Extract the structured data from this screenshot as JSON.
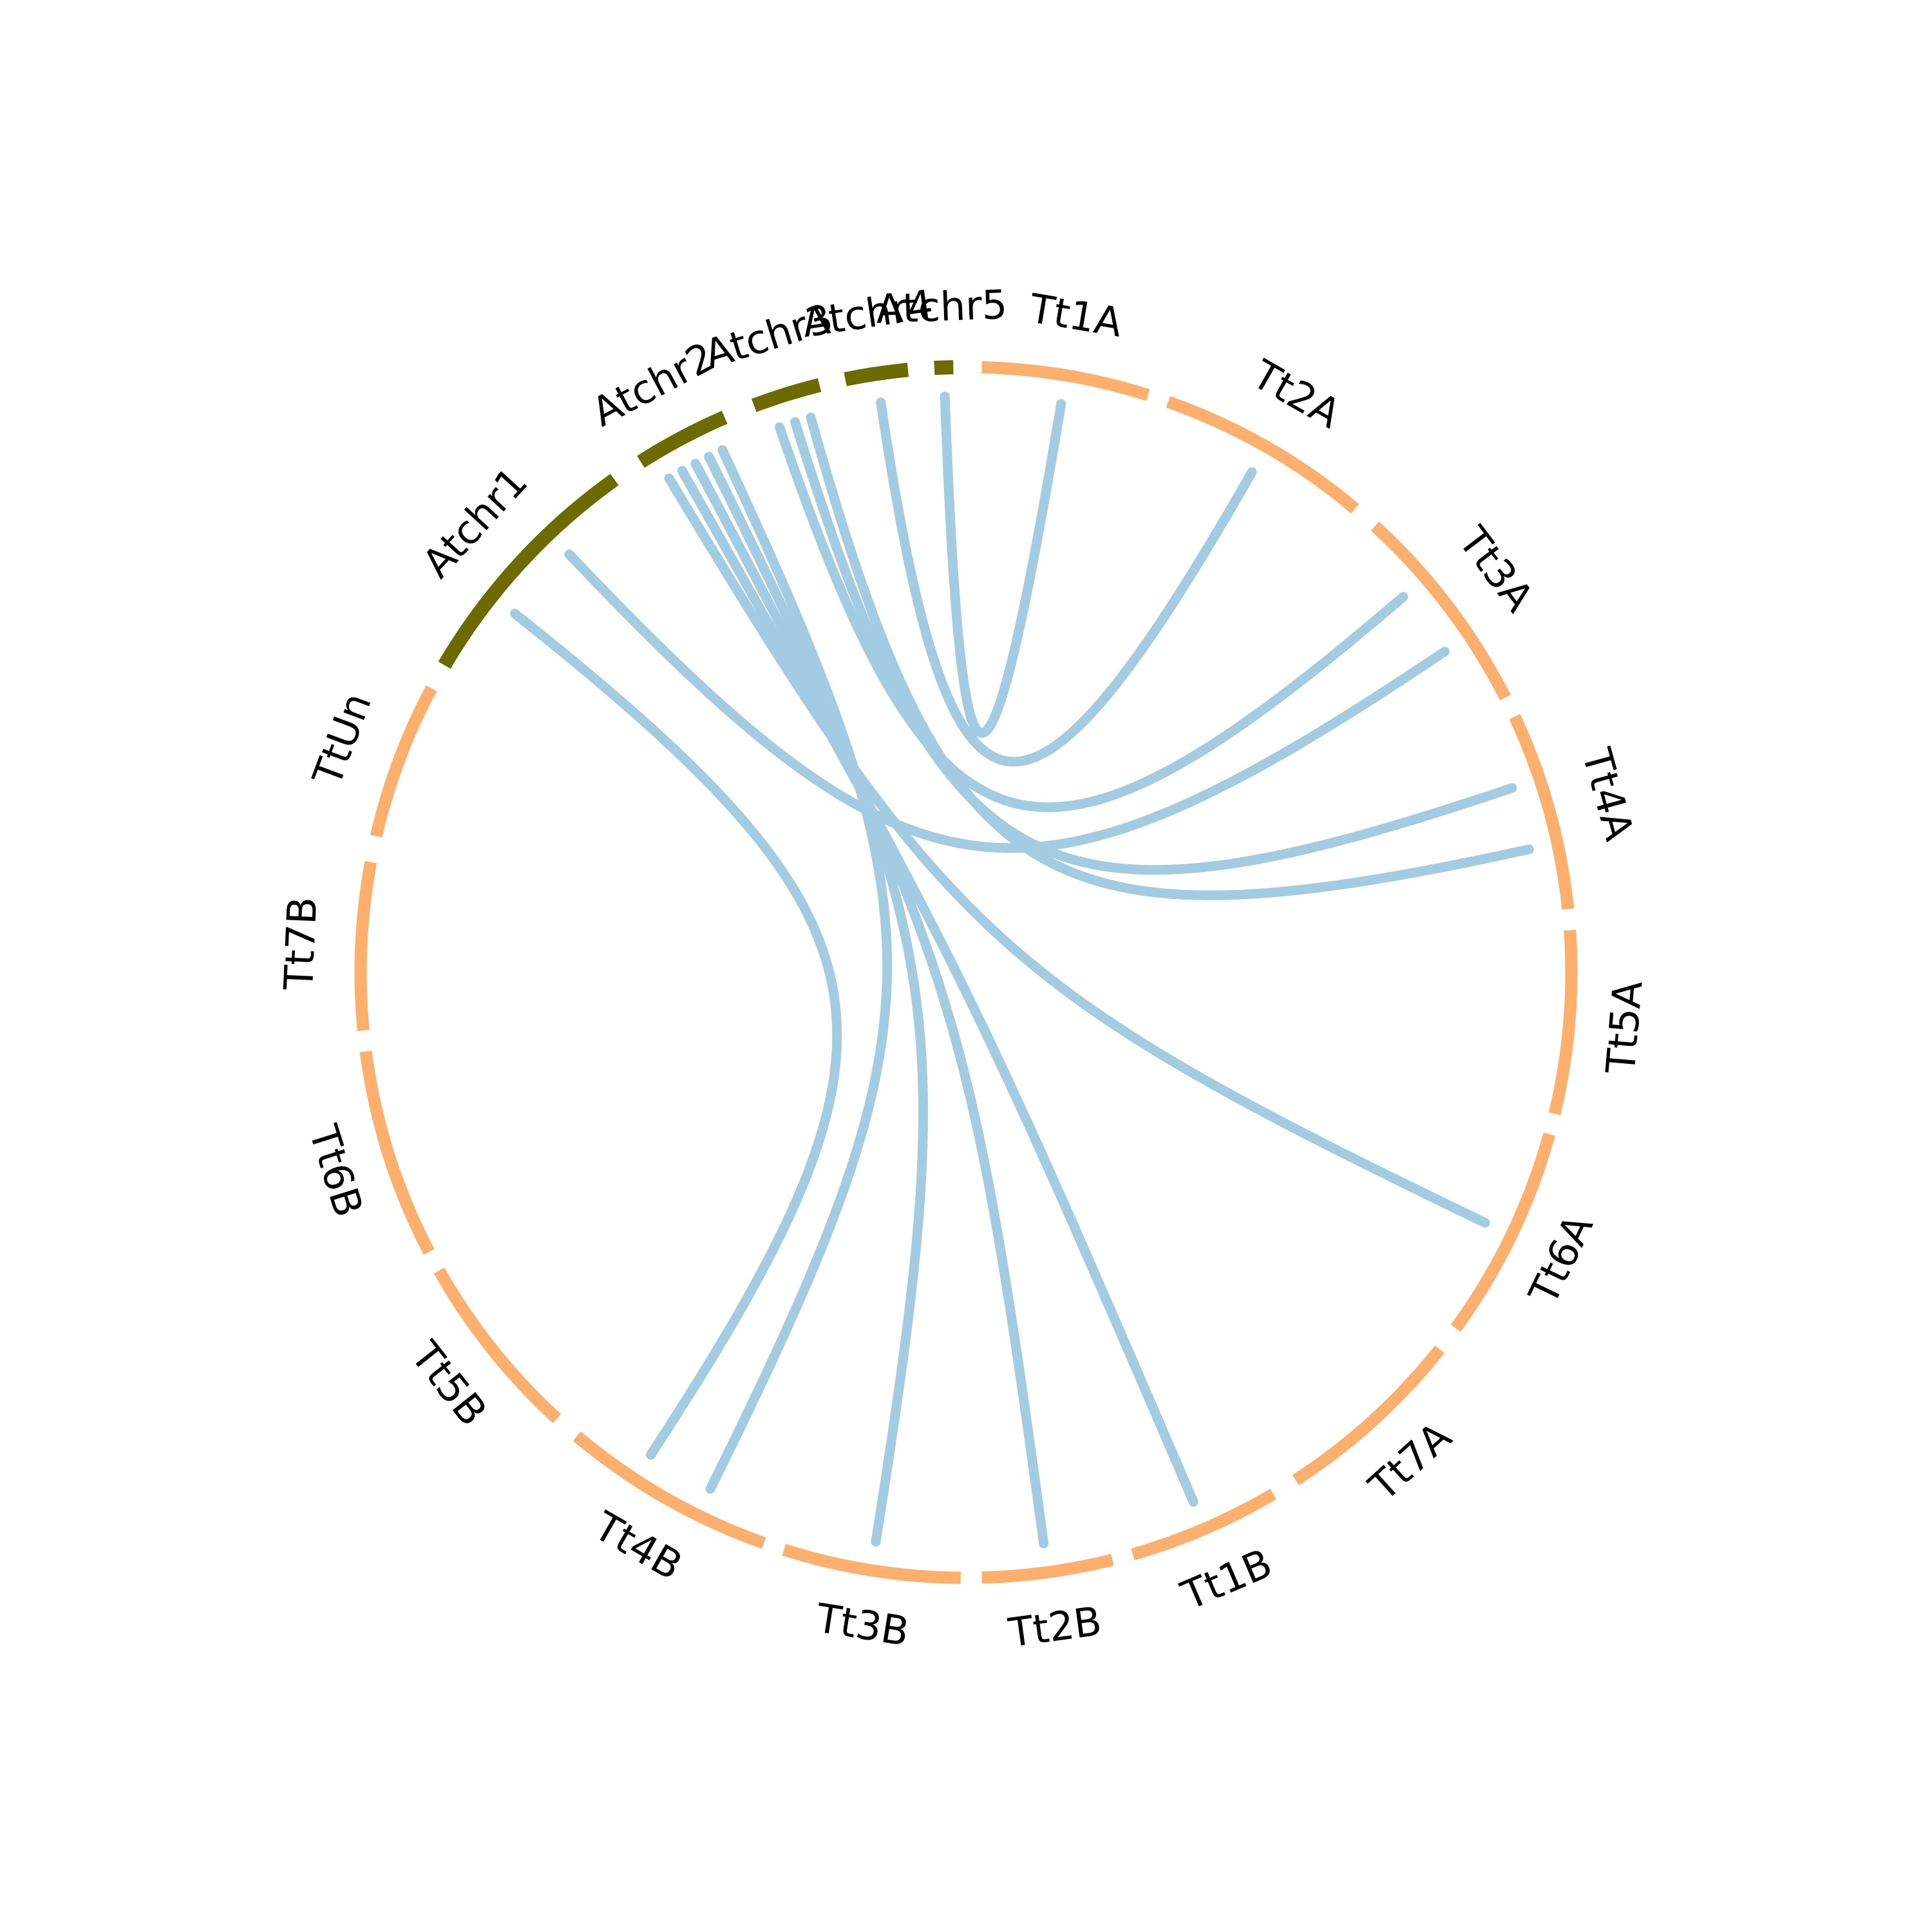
{
  "colors": {
    "arabidopsis": "#6b6b00",
    "triticum": "#fdb06e",
    "link": "#a3cbe1",
    "label": "#000000"
  },
  "segments": [
    {
      "name": "Atchr1",
      "start": 300.5,
      "end": 324.5,
      "group": "arabidopsis"
    },
    {
      "name": "Atchr2",
      "start": 327.5,
      "end": 336.5,
      "group": "arabidopsis"
    },
    {
      "name": "Atchr3",
      "start": 339.5,
      "end": 346.0,
      "group": "arabidopsis"
    },
    {
      "name": "Atchr4",
      "start": 348.5,
      "end": 354.5,
      "group": "arabidopsis"
    },
    {
      "name": "Atchr5",
      "start": 357.0,
      "end": 358.8,
      "group": "arabidopsis"
    },
    {
      "name": "Tt1A",
      "start": 1.5,
      "end": 17.5,
      "group": "triticum"
    },
    {
      "name": "Tt2A",
      "start": 19.5,
      "end": 40.0,
      "group": "triticum"
    },
    {
      "name": "Tt3A",
      "start": 42.5,
      "end": 63.0,
      "group": "triticum"
    },
    {
      "name": "Tt4A",
      "start": 65.0,
      "end": 84.0,
      "group": "triticum"
    },
    {
      "name": "Tt5A",
      "start": 86.0,
      "end": 103.5,
      "group": "triticum"
    },
    {
      "name": "Tt6A",
      "start": 105.5,
      "end": 126.0,
      "group": "triticum"
    },
    {
      "name": "Tt7A",
      "start": 128.5,
      "end": 147.0,
      "group": "triticum"
    },
    {
      "name": "Tt1B",
      "start": 149.5,
      "end": 164.0,
      "group": "triticum"
    },
    {
      "name": "Tt2B",
      "start": 166.0,
      "end": 178.5,
      "group": "triticum"
    },
    {
      "name": "Tt3B",
      "start": 180.5,
      "end": 197.5,
      "group": "triticum"
    },
    {
      "name": "Tt4B",
      "start": 199.5,
      "end": 220.0,
      "group": "triticum"
    },
    {
      "name": "Tt5B",
      "start": 222.5,
      "end": 240.5,
      "group": "triticum"
    },
    {
      "name": "Tt6B",
      "start": 242.5,
      "end": 262.5,
      "group": "triticum"
    },
    {
      "name": "Tt7B",
      "start": 264.5,
      "end": 280.5,
      "group": "triticum"
    },
    {
      "name": "TtUn",
      "start": 283.0,
      "end": 298.0,
      "group": "triticum"
    }
  ],
  "links": [
    {
      "from": "Atchr5",
      "to": "Tt1A"
    },
    {
      "from": "Atchr4",
      "to": "Tt2A"
    },
    {
      "from": "Atchr3",
      "to": "Tt3A"
    },
    {
      "from": "Atchr3",
      "to": "Tt4A"
    },
    {
      "from": "Atchr3",
      "to": "Tt4A"
    },
    {
      "from": "Atchr2",
      "to": "Tt6A"
    },
    {
      "from": "Atchr2",
      "to": "Tt1B"
    },
    {
      "from": "Atchr2",
      "to": "Tt2B"
    },
    {
      "from": "Atchr2",
      "to": "Tt3B"
    },
    {
      "from": "Atchr2",
      "to": "Tt4B"
    },
    {
      "from": "Atchr1",
      "to": "Tt4B"
    },
    {
      "from": "Atchr1",
      "to": "Tt3A"
    }
  ]
}
